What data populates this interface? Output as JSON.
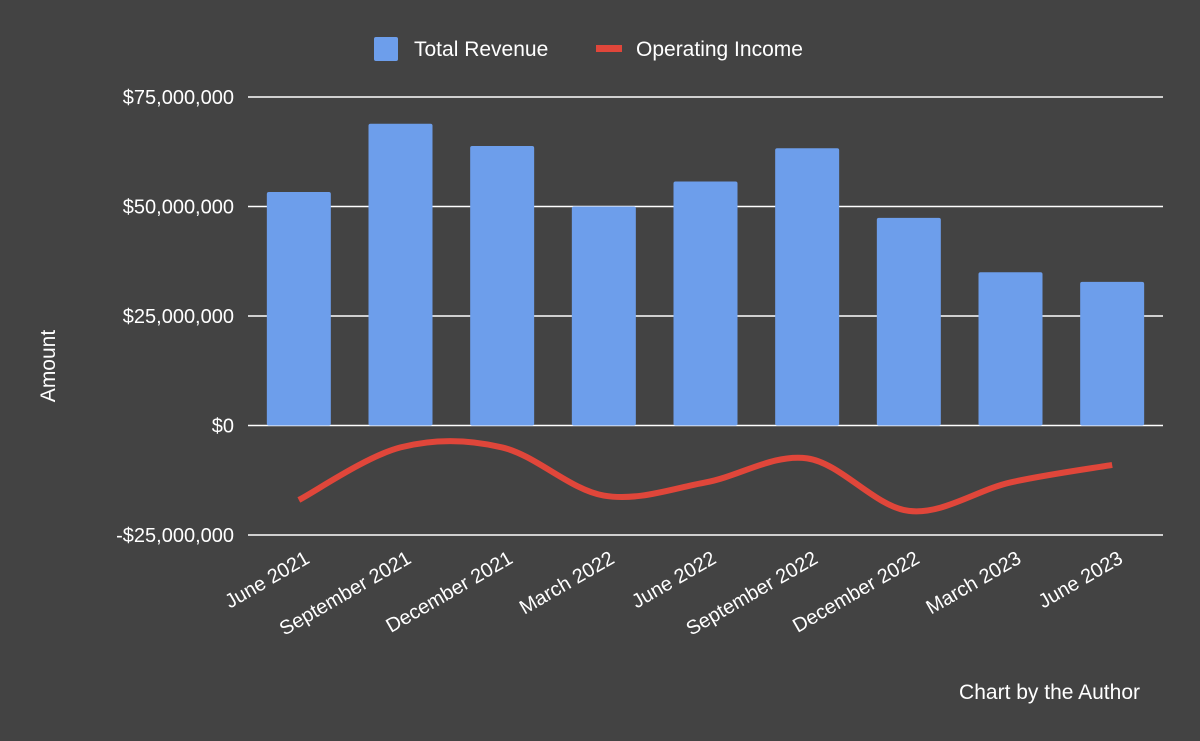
{
  "chart_data": {
    "type": "bar",
    "categories": [
      "June 2021",
      "September 2021",
      "December 2021",
      "March 2022",
      "June 2022",
      "September 2022",
      "December 2022",
      "March 2023",
      "June 2023"
    ],
    "series": [
      {
        "name": "Total Revenue",
        "type": "bar",
        "color": "#6d9eeb",
        "values": [
          53300000,
          68900000,
          63800000,
          50000000,
          55700000,
          63300000,
          47400000,
          35000000,
          32800000
        ]
      },
      {
        "name": "Operating Income",
        "type": "line",
        "color": "#e0463a",
        "values": [
          -17000000,
          -5000000,
          -5000000,
          -16000000,
          -13000000,
          -7500000,
          -19500000,
          -13000000,
          -9000000
        ]
      }
    ],
    "ylabel": "Amount",
    "xlabel": "",
    "ylim": [
      -25000000,
      75000000
    ],
    "yticks": [
      {
        "value": 75000000,
        "label": "$75,000,000"
      },
      {
        "value": 50000000,
        "label": "$50,000,000"
      },
      {
        "value": 25000000,
        "label": "$25,000,000"
      },
      {
        "value": 0,
        "label": "$0"
      },
      {
        "value": -25000000,
        "label": "-$25,000,000"
      }
    ],
    "grid": true,
    "legend_position": "top"
  },
  "credit": "Chart by the Author"
}
